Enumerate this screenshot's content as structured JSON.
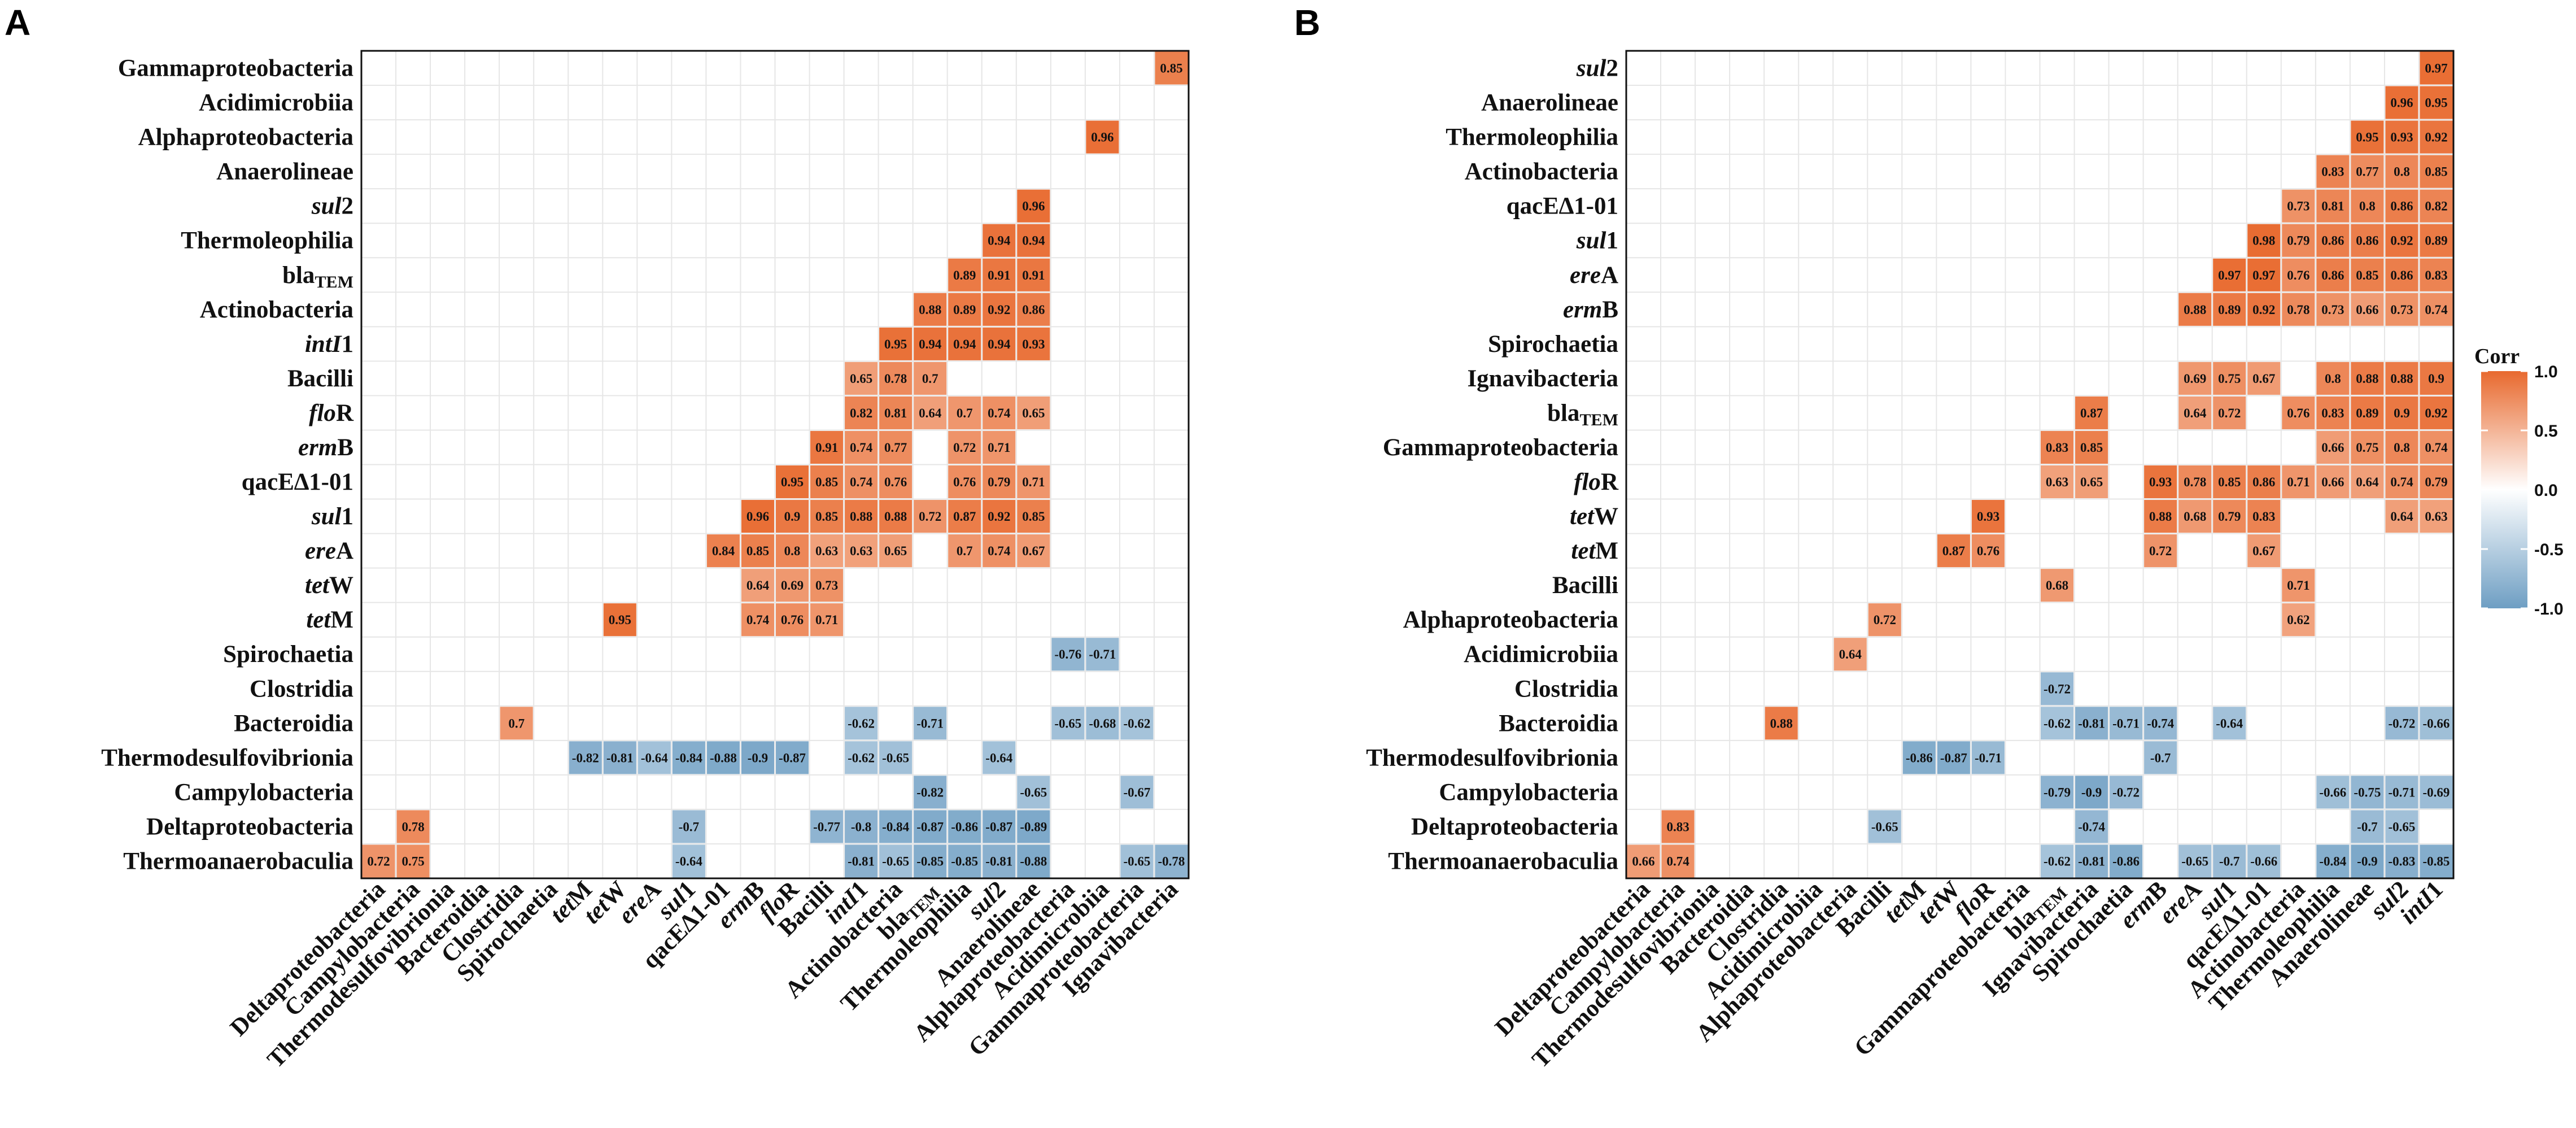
{
  "legend": {
    "title": "Corr",
    "ticks": [
      "1.0",
      "0.5",
      "0.0",
      "-0.5",
      "-1.0"
    ],
    "tick_values": [
      1.0,
      0.5,
      0.0,
      -0.5,
      -1.0
    ],
    "colors": {
      "high": "#e8692e",
      "mid": "#ffffff",
      "low": "#6e9ec3"
    }
  },
  "chart_data": [
    {
      "type": "heatmap",
      "panel": "A",
      "title": "",
      "x_labels": [
        "Deltaproteobacteria",
        "Campylobacteria",
        "Thermodesulfovibrionia",
        "Bacteroidia",
        "Clostridia",
        "Spirochaetia",
        "tetM",
        "tetW",
        "ereA",
        "sul1",
        "qacE∆1-01",
        "ermB",
        "floR",
        "Bacilli",
        "intI1",
        "Actinobacteria",
        "blaTEM",
        "Thermoleophilia",
        "sul2",
        "Anaerolineae",
        "Alphaproteobacteria",
        "Acidimicrobiia",
        "Gammaproteobacteria",
        "Ignavibacteria"
      ],
      "y_labels": [
        "Gammaproteobacteria",
        "Acidimicrobiia",
        "Alphaproteobacteria",
        "Anaerolineae",
        "sul2",
        "Thermoleophilia",
        "blaTEM",
        "Actinobacteria",
        "intI1",
        "Bacilli",
        "floR",
        "ermB",
        "qacE∆1-01",
        "sul1",
        "ereA",
        "tetW",
        "tetM",
        "Spirochaetia",
        "Clostridia",
        "Bacteroidia",
        "Thermodesulfovibrionia",
        "Campylobacteria",
        "Deltaproteobacteria",
        "Thermoanaerobaculia"
      ],
      "cells": [
        [
          "Gammaproteobacteria",
          23,
          0.85
        ],
        [
          "Alphaproteobacteria",
          21,
          0.96
        ],
        [
          "sul2",
          19,
          0.96
        ],
        [
          "Thermoleophilia",
          18,
          0.94
        ],
        [
          "Thermoleophilia",
          19,
          0.94
        ],
        [
          "blaTEM",
          17,
          0.89
        ],
        [
          "blaTEM",
          18,
          0.91
        ],
        [
          "blaTEM",
          19,
          0.91
        ],
        [
          "Actinobacteria",
          16,
          0.88
        ],
        [
          "Actinobacteria",
          17,
          0.89
        ],
        [
          "Actinobacteria",
          18,
          0.92
        ],
        [
          "Actinobacteria",
          19,
          0.86
        ],
        [
          "intI1",
          15,
          0.95
        ],
        [
          "intI1",
          16,
          0.94
        ],
        [
          "intI1",
          17,
          0.94
        ],
        [
          "intI1",
          18,
          0.94
        ],
        [
          "intI1",
          19,
          0.93
        ],
        [
          "Bacilli",
          14,
          0.65
        ],
        [
          "Bacilli",
          15,
          0.78
        ],
        [
          "Bacilli",
          16,
          0.7
        ],
        [
          "floR",
          14,
          0.82
        ],
        [
          "floR",
          15,
          0.81
        ],
        [
          "floR",
          16,
          0.64
        ],
        [
          "floR",
          17,
          0.7
        ],
        [
          "floR",
          18,
          0.74
        ],
        [
          "floR",
          19,
          0.65
        ],
        [
          "ermB",
          13,
          0.91
        ],
        [
          "ermB",
          14,
          0.74
        ],
        [
          "ermB",
          15,
          0.77
        ],
        [
          "ermB",
          17,
          0.72
        ],
        [
          "ermB",
          18,
          0.71
        ],
        [
          "qacE∆1-01",
          12,
          0.95
        ],
        [
          "qacE∆1-01",
          13,
          0.85
        ],
        [
          "qacE∆1-01",
          14,
          0.74
        ],
        [
          "qacE∆1-01",
          15,
          0.76
        ],
        [
          "qacE∆1-01",
          17,
          0.76
        ],
        [
          "qacE∆1-01",
          18,
          0.79
        ],
        [
          "qacE∆1-01",
          19,
          0.71
        ],
        [
          "sul1",
          11,
          0.96
        ],
        [
          "sul1",
          12,
          0.9
        ],
        [
          "sul1",
          13,
          0.85
        ],
        [
          "sul1",
          14,
          0.88
        ],
        [
          "sul1",
          15,
          0.88
        ],
        [
          "sul1",
          16,
          0.72
        ],
        [
          "sul1",
          17,
          0.87
        ],
        [
          "sul1",
          18,
          0.92
        ],
        [
          "sul1",
          19,
          0.85
        ],
        [
          "ereA",
          10,
          0.84
        ],
        [
          "ereA",
          11,
          0.85
        ],
        [
          "ereA",
          12,
          0.8
        ],
        [
          "ereA",
          13,
          0.63
        ],
        [
          "ereA",
          14,
          0.63
        ],
        [
          "ereA",
          15,
          0.65
        ],
        [
          "ereA",
          17,
          0.7
        ],
        [
          "ereA",
          18,
          0.74
        ],
        [
          "ereA",
          19,
          0.67
        ],
        [
          "tetW",
          11,
          0.64
        ],
        [
          "tetW",
          12,
          0.69
        ],
        [
          "tetW",
          13,
          0.73
        ],
        [
          "tetM",
          7,
          0.95
        ],
        [
          "tetM",
          11,
          0.74
        ],
        [
          "tetM",
          12,
          0.76
        ],
        [
          "tetM",
          13,
          0.71
        ],
        [
          "Spirochaetia",
          20,
          -0.76
        ],
        [
          "Spirochaetia",
          21,
          -0.71
        ],
        [
          "Bacteroidia",
          4,
          0.7
        ],
        [
          "Bacteroidia",
          14,
          -0.62
        ],
        [
          "Bacteroidia",
          16,
          -0.71
        ],
        [
          "Bacteroidia",
          20,
          -0.65
        ],
        [
          "Bacteroidia",
          21,
          -0.68
        ],
        [
          "Bacteroidia",
          22,
          -0.62
        ],
        [
          "Thermodesulfovibrionia",
          6,
          -0.82
        ],
        [
          "Thermodesulfovibrionia",
          7,
          -0.81
        ],
        [
          "Thermodesulfovibrionia",
          8,
          -0.64
        ],
        [
          "Thermodesulfovibrionia",
          9,
          -0.84
        ],
        [
          "Thermodesulfovibrionia",
          10,
          -0.88
        ],
        [
          "Thermodesulfovibrionia",
          11,
          -0.9
        ],
        [
          "Thermodesulfovibrionia",
          12,
          -0.87
        ],
        [
          "Thermodesulfovibrionia",
          14,
          -0.62
        ],
        [
          "Thermodesulfovibrionia",
          15,
          -0.65
        ],
        [
          "Thermodesulfovibrionia",
          18,
          -0.64
        ],
        [
          "Campylobacteria",
          16,
          -0.82
        ],
        [
          "Campylobacteria",
          19,
          -0.65
        ],
        [
          "Campylobacteria",
          22,
          -0.67
        ],
        [
          "Deltaproteobacteria",
          1,
          0.78
        ],
        [
          "Deltaproteobacteria",
          9,
          -0.7
        ],
        [
          "Deltaproteobacteria",
          13,
          -0.77
        ],
        [
          "Deltaproteobacteria",
          14,
          -0.8
        ],
        [
          "Deltaproteobacteria",
          15,
          -0.84
        ],
        [
          "Deltaproteobacteria",
          16,
          -0.87
        ],
        [
          "Deltaproteobacteria",
          17,
          -0.86
        ],
        [
          "Deltaproteobacteria",
          18,
          -0.87
        ],
        [
          "Deltaproteobacteria",
          19,
          -0.89
        ],
        [
          "Thermoanaerobaculia",
          0,
          0.72
        ],
        [
          "Thermoanaerobaculia",
          1,
          0.75
        ],
        [
          "Thermoanaerobaculia",
          9,
          -0.64
        ],
        [
          "Thermoanaerobaculia",
          14,
          -0.81
        ],
        [
          "Thermoanaerobaculia",
          15,
          -0.65
        ],
        [
          "Thermoanaerobaculia",
          16,
          -0.85
        ],
        [
          "Thermoanaerobaculia",
          17,
          -0.85
        ],
        [
          "Thermoanaerobaculia",
          18,
          -0.81
        ],
        [
          "Thermoanaerobaculia",
          19,
          -0.88
        ],
        [
          "Thermoanaerobaculia",
          22,
          -0.65
        ],
        [
          "Thermoanaerobaculia",
          23,
          -0.78
        ]
      ]
    },
    {
      "type": "heatmap",
      "panel": "B",
      "title": "",
      "x_labels": [
        "Deltaproteobacteria",
        "Campylobacteria",
        "Thermodesulfovibrionia",
        "Bacteroidia",
        "Clostridia",
        "Acidimicrobiia",
        "Alphaproteobacteria",
        "Bacilli",
        "tetM",
        "tetW",
        "floR",
        "Gammaproteobacteria",
        "blaTEM",
        "Ignavibacteria",
        "Spirochaetia",
        "ermB",
        "ereA",
        "sul1",
        "qacE∆1-01",
        "Actinobacteria",
        "Thermoleophilia",
        "Anaerolineae",
        "sul2",
        "intI1"
      ],
      "y_labels": [
        "sul2",
        "Anaerolineae",
        "Thermoleophilia",
        "Actinobacteria",
        "qacE∆1-01",
        "sul1",
        "ereA",
        "ermB",
        "Spirochaetia",
        "Ignavibacteria",
        "blaTEM",
        "Gammaproteobacteria",
        "floR",
        "tetW",
        "tetM",
        "Bacilli",
        "Alphaproteobacteria",
        "Acidimicrobiia",
        "Clostridia",
        "Bacteroidia",
        "Thermodesulfovibrionia",
        "Campylobacteria",
        "Deltaproteobacteria",
        "Thermoanaerobaculia"
      ],
      "cells": [
        [
          "sul2",
          23,
          0.97
        ],
        [
          "Anaerolineae",
          22,
          0.96
        ],
        [
          "Anaerolineae",
          23,
          0.95
        ],
        [
          "Thermoleophilia",
          21,
          0.95
        ],
        [
          "Thermoleophilia",
          22,
          0.93
        ],
        [
          "Thermoleophilia",
          23,
          0.92
        ],
        [
          "Actinobacteria",
          20,
          0.83
        ],
        [
          "Actinobacteria",
          21,
          0.77
        ],
        [
          "Actinobacteria",
          22,
          0.8
        ],
        [
          "Actinobacteria",
          23,
          0.85
        ],
        [
          "qacE∆1-01",
          19,
          0.73
        ],
        [
          "qacE∆1-01",
          20,
          0.81
        ],
        [
          "qacE∆1-01",
          21,
          0.8
        ],
        [
          "qacE∆1-01",
          22,
          0.86
        ],
        [
          "qacE∆1-01",
          23,
          0.82
        ],
        [
          "sul1",
          18,
          0.98
        ],
        [
          "sul1",
          19,
          0.79
        ],
        [
          "sul1",
          20,
          0.86
        ],
        [
          "sul1",
          21,
          0.86
        ],
        [
          "sul1",
          22,
          0.92
        ],
        [
          "sul1",
          23,
          0.89
        ],
        [
          "ereA",
          17,
          0.97
        ],
        [
          "ereA",
          18,
          0.97
        ],
        [
          "ereA",
          19,
          0.76
        ],
        [
          "ereA",
          20,
          0.86
        ],
        [
          "ereA",
          21,
          0.85
        ],
        [
          "ereA",
          22,
          0.86
        ],
        [
          "ereA",
          23,
          0.83
        ],
        [
          "ermB",
          16,
          0.88
        ],
        [
          "ermB",
          17,
          0.89
        ],
        [
          "ermB",
          18,
          0.92
        ],
        [
          "ermB",
          19,
          0.78
        ],
        [
          "ermB",
          20,
          0.73
        ],
        [
          "ermB",
          21,
          0.66
        ],
        [
          "ermB",
          22,
          0.73
        ],
        [
          "ermB",
          23,
          0.74
        ],
        [
          "Ignavibacteria",
          16,
          0.69
        ],
        [
          "Ignavibacteria",
          17,
          0.75
        ],
        [
          "Ignavibacteria",
          18,
          0.67
        ],
        [
          "Ignavibacteria",
          20,
          0.8
        ],
        [
          "Ignavibacteria",
          21,
          0.88
        ],
        [
          "Ignavibacteria",
          22,
          0.88
        ],
        [
          "Ignavibacteria",
          23,
          0.9
        ],
        [
          "blaTEM",
          13,
          0.87
        ],
        [
          "blaTEM",
          16,
          0.64
        ],
        [
          "blaTEM",
          17,
          0.72
        ],
        [
          "blaTEM",
          19,
          0.76
        ],
        [
          "blaTEM",
          20,
          0.83
        ],
        [
          "blaTEM",
          21,
          0.89
        ],
        [
          "blaTEM",
          22,
          0.9
        ],
        [
          "blaTEM",
          23,
          0.92
        ],
        [
          "Gammaproteobacteria",
          12,
          0.83
        ],
        [
          "Gammaproteobacteria",
          13,
          0.85
        ],
        [
          "Gammaproteobacteria",
          20,
          0.66
        ],
        [
          "Gammaproteobacteria",
          21,
          0.75
        ],
        [
          "Gammaproteobacteria",
          22,
          0.8
        ],
        [
          "Gammaproteobacteria",
          23,
          0.74
        ],
        [
          "floR",
          12,
          0.63
        ],
        [
          "floR",
          13,
          0.65
        ],
        [
          "floR",
          15,
          0.93
        ],
        [
          "floR",
          16,
          0.78
        ],
        [
          "floR",
          17,
          0.85
        ],
        [
          "floR",
          18,
          0.86
        ],
        [
          "floR",
          19,
          0.71
        ],
        [
          "floR",
          20,
          0.66
        ],
        [
          "floR",
          21,
          0.64
        ],
        [
          "floR",
          22,
          0.74
        ],
        [
          "floR",
          23,
          0.79
        ],
        [
          "tetW",
          10,
          0.93
        ],
        [
          "tetW",
          15,
          0.88
        ],
        [
          "tetW",
          16,
          0.68
        ],
        [
          "tetW",
          17,
          0.79
        ],
        [
          "tetW",
          18,
          0.83
        ],
        [
          "tetW",
          22,
          0.64
        ],
        [
          "tetW",
          23,
          0.63
        ],
        [
          "tetM",
          9,
          0.87
        ],
        [
          "tetM",
          10,
          0.76
        ],
        [
          "tetM",
          15,
          0.72
        ],
        [
          "tetM",
          18,
          0.67
        ],
        [
          "Bacilli",
          12,
          0.68
        ],
        [
          "Bacilli",
          19,
          0.71
        ],
        [
          "Alphaproteobacteria",
          7,
          0.72
        ],
        [
          "Alphaproteobacteria",
          19,
          0.62
        ],
        [
          "Acidimicrobiia",
          6,
          0.64
        ],
        [
          "Clostridia",
          12,
          -0.72
        ],
        [
          "Bacteroidia",
          4,
          0.88
        ],
        [
          "Bacteroidia",
          12,
          -0.62
        ],
        [
          "Bacteroidia",
          13,
          -0.81
        ],
        [
          "Bacteroidia",
          14,
          -0.71
        ],
        [
          "Bacteroidia",
          15,
          -0.74
        ],
        [
          "Bacteroidia",
          17,
          -0.64
        ],
        [
          "Bacteroidia",
          22,
          -0.72
        ],
        [
          "Bacteroidia",
          23,
          -0.66
        ],
        [
          "Thermodesulfovibrionia",
          8,
          -0.86
        ],
        [
          "Thermodesulfovibrionia",
          9,
          -0.87
        ],
        [
          "Thermodesulfovibrionia",
          10,
          -0.71
        ],
        [
          "Thermodesulfovibrionia",
          15,
          -0.7
        ],
        [
          "Campylobacteria",
          12,
          -0.79
        ],
        [
          "Campylobacteria",
          13,
          -0.9
        ],
        [
          "Campylobacteria",
          14,
          -0.72
        ],
        [
          "Campylobacteria",
          20,
          -0.66
        ],
        [
          "Campylobacteria",
          21,
          -0.75
        ],
        [
          "Campylobacteria",
          22,
          -0.71
        ],
        [
          "Campylobacteria",
          23,
          -0.69
        ],
        [
          "Deltaproteobacteria",
          1,
          0.83
        ],
        [
          "Deltaproteobacteria",
          7,
          -0.65
        ],
        [
          "Deltaproteobacteria",
          13,
          -0.74
        ],
        [
          "Deltaproteobacteria",
          21,
          -0.7
        ],
        [
          "Deltaproteobacteria",
          22,
          -0.65
        ],
        [
          "Thermoanaerobaculia",
          0,
          0.66
        ],
        [
          "Thermoanaerobaculia",
          1,
          0.74
        ],
        [
          "Thermoanaerobaculia",
          12,
          -0.62
        ],
        [
          "Thermoanaerobaculia",
          13,
          -0.81
        ],
        [
          "Thermoanaerobaculia",
          14,
          -0.86
        ],
        [
          "Thermoanaerobaculia",
          16,
          -0.65
        ],
        [
          "Thermoanaerobaculia",
          17,
          -0.7
        ],
        [
          "Thermoanaerobaculia",
          18,
          -0.66
        ],
        [
          "Thermoanaerobaculia",
          20,
          -0.84
        ],
        [
          "Thermoanaerobaculia",
          21,
          -0.9
        ],
        [
          "Thermoanaerobaculia",
          22,
          -0.83
        ],
        [
          "Thermoanaerobaculia",
          23,
          -0.85
        ]
      ]
    }
  ]
}
